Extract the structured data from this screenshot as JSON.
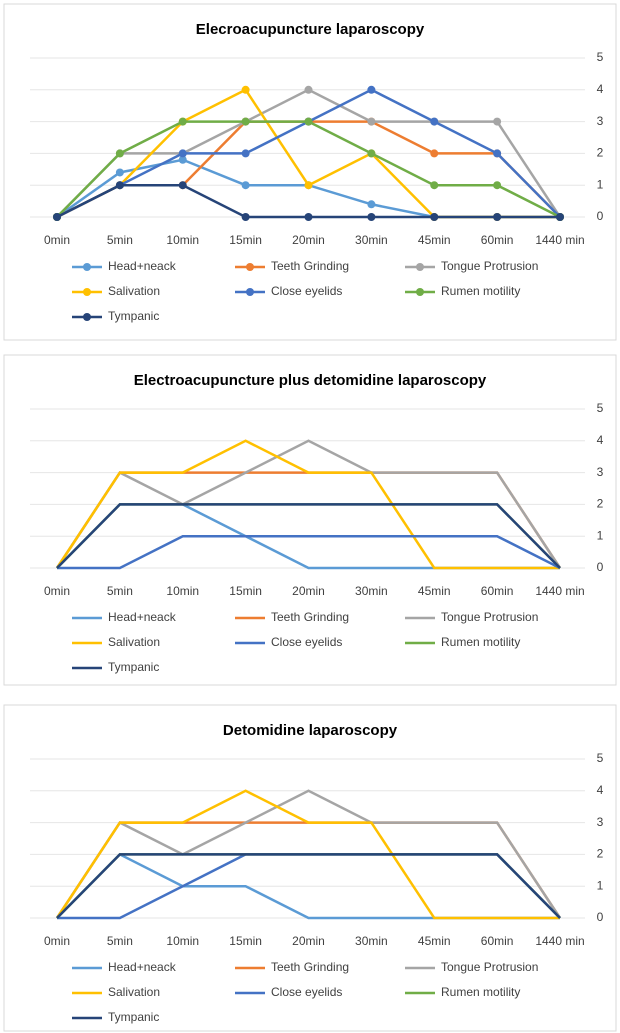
{
  "chart_data": [
    {
      "type": "line",
      "title": "Elecroacupuncture laparoscopy",
      "markers": true,
      "grid": true,
      "categories": [
        "0min",
        "5min",
        "10min",
        "15min",
        "20min",
        "30min",
        "45min",
        "60min",
        "1440 min"
      ],
      "ylim": [
        0,
        5
      ],
      "yticks": [
        0,
        1,
        2,
        3,
        4,
        5
      ],
      "series": [
        {
          "name": "Head+neack",
          "color": "#5b9bd5",
          "values": [
            0,
            1.4,
            1.8,
            1,
            1,
            0.4,
            0,
            0,
            0
          ]
        },
        {
          "name": "Teeth Grinding",
          "color": "#ed7d31",
          "values": [
            0,
            1,
            1,
            3,
            3,
            3,
            2,
            2,
            0
          ]
        },
        {
          "name": "Tongue Protrusion",
          "color": "#a5a5a5",
          "values": [
            0,
            2,
            2,
            3,
            4,
            3,
            3,
            3,
            0
          ]
        },
        {
          "name": "Salivation",
          "color": "#ffc000",
          "values": [
            0,
            1,
            3,
            4,
            1,
            2,
            0,
            0,
            0
          ]
        },
        {
          "name": "Close eyelids",
          "color": "#4472c4",
          "values": [
            0,
            1,
            2,
            2,
            3,
            4,
            3,
            2,
            0
          ]
        },
        {
          "name": "Rumen motility",
          "color": "#70ad47",
          "values": [
            0,
            2,
            3,
            3,
            3,
            2,
            1,
            1,
            0
          ]
        },
        {
          "name": "Tympanic",
          "color": "#264478",
          "values": [
            0,
            1,
            1,
            0,
            0,
            0,
            0,
            0,
            0
          ]
        }
      ]
    },
    {
      "type": "line",
      "title": "Electroacupuncture plus detomidine laparoscopy",
      "markers": false,
      "grid": true,
      "categories": [
        "0min",
        "5min",
        "10min",
        "15min",
        "20min",
        "30min",
        "45min",
        "60min",
        "1440 min"
      ],
      "ylim": [
        0,
        5
      ],
      "yticks": [
        0,
        1,
        2,
        3,
        4,
        5
      ],
      "series": [
        {
          "name": "Head+neack",
          "color": "#5b9bd5",
          "values": [
            0,
            2,
            2,
            1,
            0,
            0,
            0,
            0,
            0
          ]
        },
        {
          "name": "Teeth Grinding",
          "color": "#ed7d31",
          "values": [
            0,
            3,
            3,
            3,
            3,
            3,
            3,
            3,
            0
          ]
        },
        {
          "name": "Tongue Protrusion",
          "color": "#a5a5a5",
          "values": [
            0,
            3,
            2,
            3,
            4,
            3,
            3,
            3,
            0
          ]
        },
        {
          "name": "Salivation",
          "color": "#ffc000",
          "values": [
            0,
            3,
            3,
            4,
            3,
            3,
            0,
            0,
            0
          ]
        },
        {
          "name": "Close eyelids",
          "color": "#4472c4",
          "values": [
            0,
            0,
            1,
            1,
            1,
            1,
            1,
            1,
            0
          ]
        },
        {
          "name": "Rumen motility",
          "color": "#70ad47",
          "values": [
            0,
            2,
            2,
            2,
            2,
            2,
            2,
            2,
            0
          ]
        },
        {
          "name": "Tympanic",
          "color": "#264478",
          "values": [
            0,
            2,
            2,
            2,
            2,
            2,
            2,
            2,
            0
          ]
        }
      ]
    },
    {
      "type": "line",
      "title": "Detomidine laparoscopy",
      "markers": false,
      "grid": true,
      "categories": [
        "0min",
        "5min",
        "10min",
        "15min",
        "20min",
        "30min",
        "45min",
        "60min",
        "1440 min"
      ],
      "ylim": [
        0,
        5
      ],
      "yticks": [
        0,
        1,
        2,
        3,
        4,
        5
      ],
      "series": [
        {
          "name": "Head+neack",
          "color": "#5b9bd5",
          "values": [
            0,
            2,
            1,
            1,
            0,
            0,
            0,
            0,
            0
          ]
        },
        {
          "name": "Teeth Grinding",
          "color": "#ed7d31",
          "values": [
            0,
            3,
            3,
            3,
            3,
            3,
            3,
            3,
            0
          ]
        },
        {
          "name": "Tongue Protrusion",
          "color": "#a5a5a5",
          "values": [
            0,
            3,
            2,
            3,
            4,
            3,
            3,
            3,
            0
          ]
        },
        {
          "name": "Salivation",
          "color": "#ffc000",
          "values": [
            0,
            3,
            3,
            4,
            3,
            3,
            0,
            0,
            0
          ]
        },
        {
          "name": "Close eyelids",
          "color": "#4472c4",
          "values": [
            0,
            0,
            1,
            2,
            2,
            2,
            2,
            2,
            0
          ]
        },
        {
          "name": "Rumen motility",
          "color": "#70ad47",
          "values": [
            0,
            2,
            2,
            2,
            2,
            2,
            2,
            2,
            0
          ]
        },
        {
          "name": "Tympanic",
          "color": "#264478",
          "values": [
            0,
            2,
            2,
            2,
            2,
            2,
            2,
            2,
            0
          ]
        }
      ]
    }
  ]
}
